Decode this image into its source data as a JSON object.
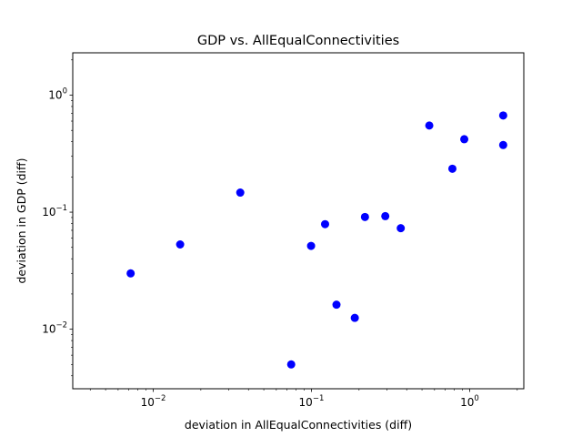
{
  "chart_data": {
    "type": "scatter",
    "title": "GDP vs. AllEqualConnectivities",
    "xlabel": "deviation in AllEqualConnectivities (diff)",
    "ylabel": "deviation in GDP (diff)",
    "xscale": "log",
    "yscale": "log",
    "xlim": [
      0.0031,
      2.2
    ],
    "ylim": [
      0.0031,
      2.3
    ],
    "grid": false,
    "legend": "none",
    "marker_color": "#0000ff",
    "x_ticks": [
      {
        "value": 0.01,
        "base": "10",
        "exp": "−2"
      },
      {
        "value": 0.1,
        "base": "10",
        "exp": "−1"
      },
      {
        "value": 1,
        "base": "10",
        "exp": "0"
      }
    ],
    "y_ticks": [
      {
        "value": 0.01,
        "base": "10",
        "exp": "−2"
      },
      {
        "value": 0.1,
        "base": "10",
        "exp": "−1"
      },
      {
        "value": 1,
        "base": "10",
        "exp": "0"
      }
    ],
    "points": [
      {
        "x": 0.0072,
        "y": 0.03
      },
      {
        "x": 0.0148,
        "y": 0.053
      },
      {
        "x": 0.0355,
        "y": 0.147
      },
      {
        "x": 0.0745,
        "y": 0.005
      },
      {
        "x": 0.0995,
        "y": 0.0515
      },
      {
        "x": 0.122,
        "y": 0.079
      },
      {
        "x": 0.144,
        "y": 0.0162
      },
      {
        "x": 0.188,
        "y": 0.0125
      },
      {
        "x": 0.218,
        "y": 0.091
      },
      {
        "x": 0.293,
        "y": 0.0925
      },
      {
        "x": 0.367,
        "y": 0.073
      },
      {
        "x": 0.556,
        "y": 0.55
      },
      {
        "x": 0.778,
        "y": 0.235
      },
      {
        "x": 0.925,
        "y": 0.42
      },
      {
        "x": 1.63,
        "y": 0.67
      },
      {
        "x": 1.63,
        "y": 0.375
      }
    ]
  }
}
